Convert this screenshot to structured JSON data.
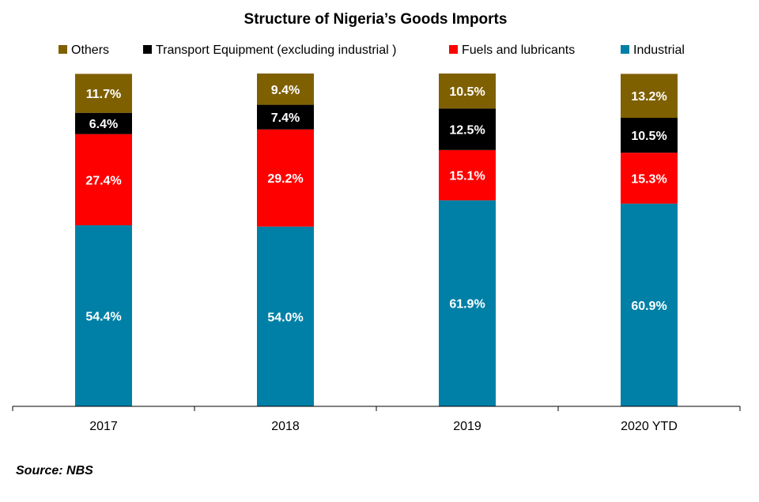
{
  "chart_data": {
    "type": "bar",
    "stacked": true,
    "title": "Structure of Nigeria’s Goods Imports",
    "categories": [
      "2017",
      "2018",
      "2019",
      "2020 YTD"
    ],
    "ylim": [
      0,
      100
    ],
    "grid": false,
    "legend_position": "top",
    "value_suffix": "%",
    "series": [
      {
        "name": "Industrial",
        "color": "#0080A6",
        "label_color": "#ffffff",
        "values": [
          54.4,
          54.0,
          61.9,
          60.9
        ]
      },
      {
        "name": "Fuels and lubricants",
        "color": "#FF0000",
        "label_color": "#ffffff",
        "values": [
          27.4,
          29.2,
          15.1,
          15.3
        ]
      },
      {
        "name": "Transport Equipment (excluding industrial )",
        "color": "#000000",
        "label_color": "#ffffff",
        "values": [
          6.4,
          7.4,
          12.5,
          10.5
        ]
      },
      {
        "name": "Others",
        "color": "#7F6000",
        "label_color": "#ffffff",
        "values": [
          11.7,
          9.4,
          10.5,
          13.2
        ]
      }
    ],
    "legend_order": [
      "Others",
      "Transport Equipment (excluding industrial )",
      "Fuels and lubricants",
      "Industrial"
    ],
    "source": "Source: NBS"
  }
}
